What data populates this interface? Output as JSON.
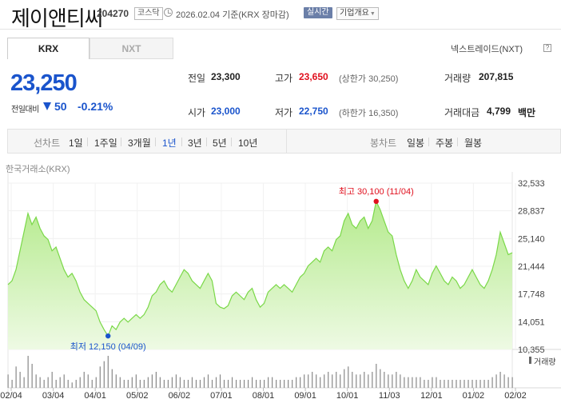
{
  "header": {
    "stock_name": "제이앤티씨",
    "stock_code": "204270",
    "market_badge": "코스닥",
    "date_text": "2026.02.04 기준(KRX 장마감)",
    "realtime_label": "실시간",
    "company_label": "기업개요"
  },
  "tabs": [
    {
      "label": "KRX"
    },
    {
      "label": "NXT"
    }
  ],
  "nxt_link": "넥스트레이드(NXT)",
  "nxt_help": "?",
  "price": {
    "current": "23,250",
    "change_label": "전일대비",
    "change_value": "50",
    "change_rate": "-0.21%"
  },
  "stats": {
    "prev_label": "전일",
    "prev_value": "23,300",
    "high_label": "고가",
    "high_value": "23,650",
    "upper_limit": "(상한가 30,250)",
    "volume_label": "거래량",
    "volume_value": "207,815",
    "open_label": "시가",
    "open_value": "23,000",
    "low_label": "저가",
    "low_value": "22,750",
    "lower_limit": "(하한가 16,350)",
    "amount_label": "거래대금",
    "amount_value": "4,799",
    "amount_unit": "백만"
  },
  "period_bar": {
    "line_label": "선차트",
    "line_options": [
      "1일",
      "1주일",
      "3개월",
      "1년",
      "3년",
      "5년",
      "10년"
    ],
    "selected": "1년",
    "candle_label": "봉차트",
    "candle_options": [
      "일봉",
      "주봉",
      "월봉"
    ]
  },
  "exchange_label": "한국거래소(KRX)",
  "volume_legend": "거래량",
  "colors": {
    "blue": "#1a54cc",
    "red": "#e0101e",
    "line": "#7ad848",
    "fill": "#c4f0a4"
  },
  "chart_data": {
    "type": "area",
    "y_axis_ticks": [
      "32,533",
      "28,837",
      "25,140",
      "21,444",
      "17,748",
      "14,051",
      "10,355"
    ],
    "ylim": [
      10355,
      32533
    ],
    "x_tick_labels": [
      "02/04",
      "03/04",
      "04/01",
      "05/02",
      "06/02",
      "07/01",
      "08/01",
      "09/01",
      "10/01",
      "11/03",
      "12/01",
      "01/02",
      "02/02"
    ],
    "high_annotation": "최고 30,100 (11/04)",
    "low_annotation": "최저 12,150 (04/09)",
    "high": {
      "date": "11/04",
      "value": 30100
    },
    "low": {
      "date": "04/09",
      "value": 12150
    },
    "series": [
      {
        "values": [
          19000,
          19500,
          21000,
          23500,
          26000,
          28500,
          27000,
          28000,
          26500,
          25500,
          25000,
          23500,
          24000,
          22500,
          21000,
          20000,
          20500,
          19500,
          18000,
          17000,
          16500,
          16000,
          15500,
          14000,
          13000,
          12150,
          13500,
          13000,
          14000,
          14500,
          14000,
          14500,
          15000,
          14500,
          15000,
          16000,
          17500,
          18000,
          19000,
          19500,
          18500,
          18000,
          19000,
          20000,
          21000,
          20500,
          19500,
          19000,
          18500,
          19500,
          20500,
          19500,
          16500,
          16000,
          15800,
          16200,
          17500,
          18000,
          17500,
          17000,
          18000,
          18500,
          17000,
          16000,
          16500,
          18000,
          18500,
          19000,
          18500,
          19000,
          18500,
          18000,
          19000,
          20000,
          20500,
          21500,
          22000,
          22500,
          22000,
          23500,
          24000,
          23500,
          25000,
          25500,
          27500,
          28500,
          27000,
          26500,
          27500,
          28000,
          26500,
          27500,
          30100,
          29000,
          27500,
          26000,
          25500,
          23000,
          21000,
          19500,
          18500,
          19500,
          21000,
          20000,
          19500,
          19000,
          20500,
          21500,
          20500,
          19500,
          19000,
          20000,
          19500,
          18500,
          19000,
          20000,
          21000,
          20000,
          19000,
          18500,
          19500,
          21000,
          23000,
          26000,
          24500,
          23000,
          23250
        ]
      }
    ],
    "volume": [
      5,
      3,
      8,
      6,
      4,
      12,
      9,
      5,
      4,
      3,
      4,
      6,
      3,
      4,
      5,
      3,
      2,
      3,
      4,
      6,
      5,
      3,
      4,
      8,
      10,
      12,
      7,
      5,
      4,
      3,
      3,
      4,
      5,
      3,
      3,
      4,
      5,
      6,
      4,
      3,
      3,
      4,
      5,
      4,
      3,
      3,
      4,
      3,
      3,
      4,
      5,
      3,
      4,
      5,
      3,
      3,
      4,
      3,
      3,
      3,
      3,
      4,
      3,
      3,
      3,
      4,
      4,
      3,
      3,
      3,
      3,
      3,
      4,
      4,
      5,
      5,
      6,
      5,
      4,
      5,
      6,
      5,
      6,
      5,
      7,
      8,
      6,
      5,
      5,
      6,
      5,
      6,
      9,
      7,
      6,
      5,
      5,
      6,
      5,
      4,
      4,
      4,
      4,
      4,
      3,
      3,
      4,
      4,
      3,
      3,
      3,
      3,
      3,
      3,
      3,
      3,
      3,
      3,
      3,
      3,
      3,
      4,
      5,
      6,
      5,
      4,
      4
    ]
  }
}
